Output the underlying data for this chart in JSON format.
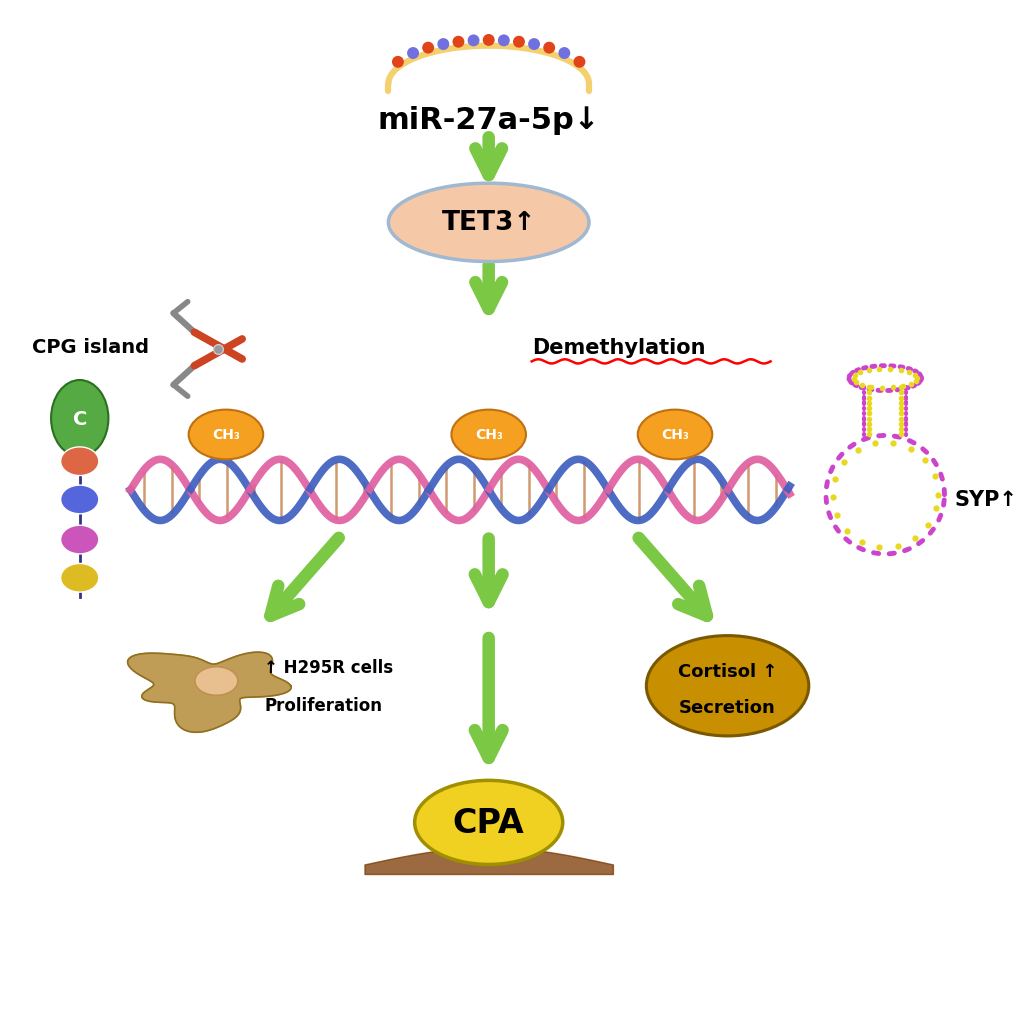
{
  "bg_color": "#ffffff",
  "arrow_color": "#7ac843",
  "mir_text": "miR-27a-5p↓",
  "tet3_text": "TET3↑",
  "demeth_text": "Demethylation",
  "cpg_text": "CPG island",
  "syp_text": "SYP↑",
  "ch3_text": "CH₃",
  "h295r_line1": "↑ H295R cells",
  "h295r_line2": "Proliferation",
  "cortisol_line1": "Cortisol ↑",
  "cortisol_line2": "Secretion",
  "cpa_text": "CPA",
  "c_text": "C",
  "mir_bracket_color": "#f5d06e",
  "tet3_fill": "#f5c8a8",
  "tet3_edge": "#a0b8d0",
  "ch3_fill": "#f5a020",
  "ch3_edge": "#c07010",
  "syp_dot_color": "#cc44cc",
  "syp_yellow": "#e8d820",
  "cpg_green": "#55aa44",
  "cortisol_fill": "#c89000",
  "cortisol_edge": "#7a5800",
  "cpa_fill": "#f0d020",
  "cpa_edge": "#a09000",
  "h295r_fill": "#b89040",
  "h295r_edge": "#907020",
  "dna_pink": "#e060a0",
  "dna_blue": "#4060c0",
  "dna_brown": "#c07840",
  "bead_colors_list": [
    "#dd6644",
    "#5566dd",
    "#cc55bb",
    "#ddbb22"
  ],
  "scissors_blade": "#cc4422",
  "scissors_handle": "#888888"
}
